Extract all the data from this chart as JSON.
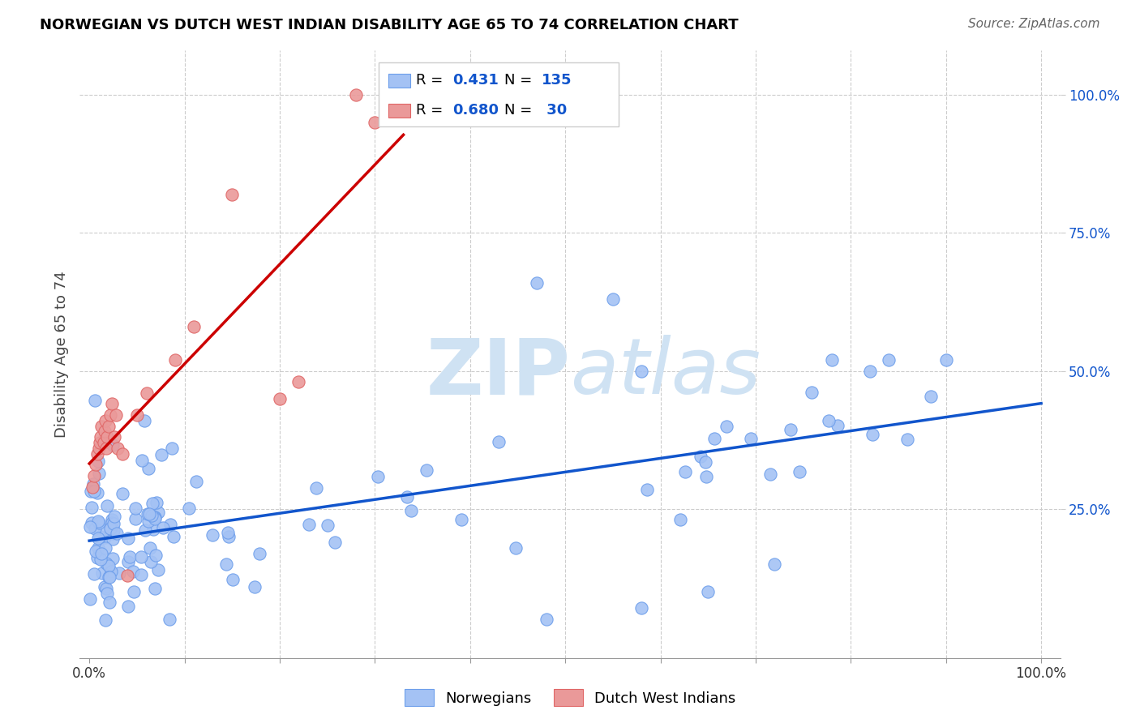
{
  "title": "NORWEGIAN VS DUTCH WEST INDIAN DISABILITY AGE 65 TO 74 CORRELATION CHART",
  "source": "Source: ZipAtlas.com",
  "ylabel": "Disability Age 65 to 74",
  "legend_r1": "0.431",
  "legend_n1": "135",
  "legend_r2": "0.680",
  "legend_n2": "30",
  "norwegian_color": "#a4c2f4",
  "norwegian_edge_color": "#6d9eeb",
  "dutch_color": "#ea9999",
  "dutch_edge_color": "#e06666",
  "norwegian_line_color": "#1155cc",
  "dutch_line_color": "#cc0000",
  "watermark_color": "#cfe2f3",
  "background_color": "#ffffff",
  "grid_color": "#cccccc",
  "title_color": "#000000",
  "source_color": "#666666",
  "axis_label_color": "#1155cc",
  "legend_text_color": "#000000",
  "legend_value_color": "#1155cc"
}
